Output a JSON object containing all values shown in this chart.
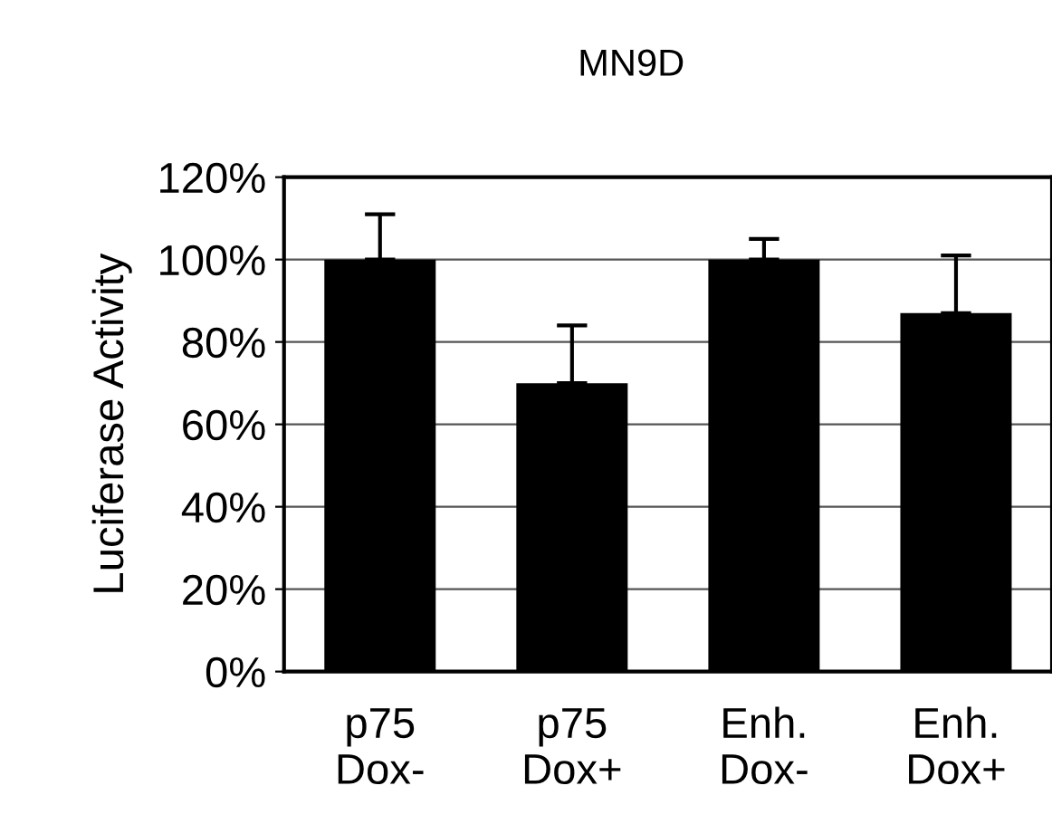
{
  "chart_data": {
    "type": "bar",
    "title": "MN9D",
    "ylabel": "Luciferase Activity",
    "categories": [
      "p75\nDox-",
      "p75\nDox+",
      "Enh.\nDox-",
      "Enh.\nDox+"
    ],
    "values": [
      100,
      70,
      100,
      87
    ],
    "errors": [
      [
        100,
        111
      ],
      [
        70,
        84
      ],
      [
        100,
        105
      ],
      [
        87,
        101
      ]
    ],
    "color": "#000000",
    "ylim": [
      0,
      120
    ],
    "yticks": [
      {
        "value": 0,
        "label": "0%"
      },
      {
        "value": 20,
        "label": "20%"
      },
      {
        "value": 40,
        "label": "40%"
      },
      {
        "value": 60,
        "label": "60%"
      },
      {
        "value": 80,
        "label": "80%"
      },
      {
        "value": 100,
        "label": "100%"
      },
      {
        "value": 120,
        "label": "120%"
      }
    ],
    "grid": "y"
  }
}
